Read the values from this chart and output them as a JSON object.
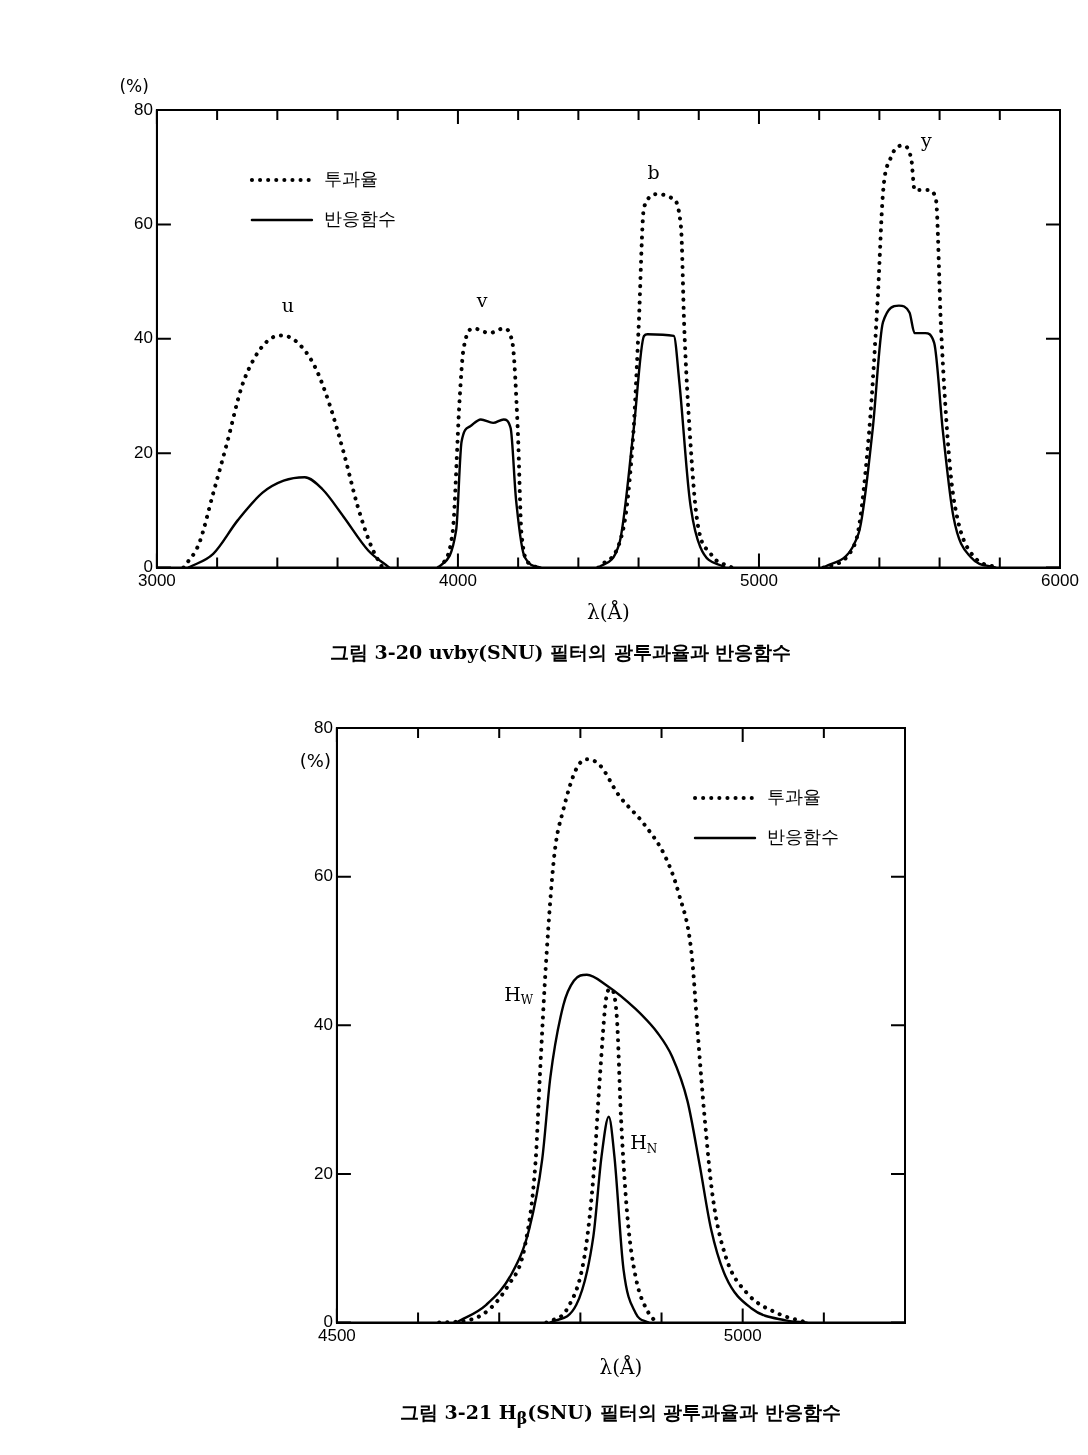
{
  "chart_data": [
    {
      "type": "line",
      "title": "그림 3-20  uvby(SNU) 필터의 광투과율과 반응함수",
      "xlabel": "λ(Å)",
      "ylabel": "(%)",
      "xlim": [
        3000,
        6000
      ],
      "ylim": [
        0,
        80
      ],
      "xticks": [
        3000,
        {
          "value": 3200,
          "label": null
        },
        {
          "value": 3400,
          "label": null
        },
        {
          "value": 3600,
          "label": null
        },
        {
          "value": 3800,
          "label": null
        },
        4000,
        {
          "value": 4200,
          "label": null
        },
        {
          "value": 4400,
          "label": null
        },
        {
          "value": 4600,
          "label": null
        },
        {
          "value": 4800,
          "label": null
        },
        5000,
        {
          "value": 5200,
          "label": null
        },
        {
          "value": 5400,
          "label": null
        },
        {
          "value": 5600,
          "label": null
        },
        {
          "value": 5800,
          "label": null
        },
        6000
      ],
      "yticks": [
        0,
        20,
        40,
        60,
        80
      ],
      "legend": "top left",
      "marker": "none",
      "series": [
        {
          "name": "투과율",
          "color": "#000000",
          "line_style": "dotted",
          "x": [
            3088,
            3140,
            3187,
            3234,
            3281,
            3327,
            3374,
            3415,
            3468,
            3526,
            3573,
            3620,
            3667,
            3713,
            3749
          ],
          "values": [
            0,
            4.2,
            13,
            22,
            31.5,
            36.9,
            39.9,
            40.6,
            39.3,
            35,
            28.6,
            20.2,
            10.7,
            3.6,
            0
          ]
        },
        {
          "name": "반응함수",
          "color": "#000000",
          "line_style": "solid",
          "x": [
            3105,
            3187,
            3269,
            3351,
            3421,
            3491,
            3550,
            3620,
            3702,
            3772
          ],
          "values": [
            0,
            2.4,
            8.3,
            13.1,
            15.2,
            15.8,
            13.7,
            8.9,
            3,
            0
          ]
        },
        {
          "color": "#000000",
          "line_style": "dotted",
          "x": [
            3936,
            3982,
            4006,
            4018,
            4053,
            4105,
            4152,
            4181,
            4199,
            4211,
            4240,
            4275
          ],
          "values": [
            0,
            6,
            29.8,
            38,
            41.8,
            41,
            41.8,
            39.3,
            23.8,
            6,
            0.6,
            0
          ]
        },
        {
          "color": "#000000",
          "line_style": "solid",
          "x": [
            3936,
            3994,
            4012,
            4041,
            4076,
            4117,
            4152,
            4175,
            4193,
            4222,
            4275
          ],
          "values": [
            0,
            6.5,
            22,
            24.7,
            25.9,
            25.3,
            25.9,
            24.4,
            11.9,
            1.8,
            0
          ]
        },
        {
          "color": "#000000",
          "line_style": "dotted",
          "x": [
            4466,
            4548,
            4583,
            4600,
            4618,
            4665,
            4711,
            4741,
            4752,
            4770,
            4793,
            4840,
            4910
          ],
          "values": [
            0,
            6.5,
            23.8,
            41.7,
            63,
            65.3,
            64.6,
            59.5,
            41.7,
            23.8,
            8.9,
            2.4,
            0
          ]
        },
        {
          "color": "#000000",
          "line_style": "solid",
          "x": [
            4466,
            4536,
            4583,
            4618,
            4630,
            4717,
            4735,
            4770,
            4805,
            4887
          ],
          "values": [
            0,
            4.2,
            23.8,
            40.5,
            40.8,
            40.5,
            32.7,
            11.9,
            3.6,
            0
          ]
        },
        {
          "color": "#000000",
          "line_style": "dotted",
          "x": [
            5214,
            5319,
            5366,
            5395,
            5412,
            5436,
            5477,
            5506,
            5517,
            5564,
            5588,
            5605,
            5634,
            5658,
            5716,
            5798
          ],
          "values": [
            0,
            4.2,
            23.8,
            47.6,
            65.5,
            71.4,
            73.8,
            71.4,
            66,
            66,
            64.3,
            41.7,
            17.9,
            8.9,
            1.8,
            0
          ]
        },
        {
          "color": "#000000",
          "line_style": "solid",
          "x": [
            5214,
            5331,
            5377,
            5412,
            5465,
            5500,
            5517,
            5552,
            5582,
            5611,
            5646,
            5704,
            5786
          ],
          "values": [
            0,
            6,
            23.8,
            42.9,
            45.8,
            44.6,
            41,
            41,
            39.3,
            23.8,
            8.9,
            1.8,
            0
          ]
        }
      ],
      "annotations": [
        "u",
        "v",
        "b",
        "y"
      ]
    },
    {
      "type": "line",
      "title": "그림 3-21  H$_{β}$(SNU) 필터의 광투과율과 반응함수",
      "xlabel": "λ(Å)",
      "ylabel": "(%)",
      "xlim": [
        4500,
        5200
      ],
      "ylim": [
        0,
        80
      ],
      "xticks": [
        4500,
        {
          "value": 4600,
          "label": null
        },
        {
          "value": 4700,
          "label": null
        },
        {
          "value": 4800,
          "label": null
        },
        {
          "value": 4900,
          "label": null
        },
        5000,
        {
          "value": 5100,
          "label": null
        }
      ],
      "yticks": [
        0,
        20,
        40,
        60,
        80
      ],
      "legend": "top right",
      "marker": "none",
      "series": [
        {
          "name": "투과율",
          "color": "#000000",
          "line_style": "dotted",
          "x": [
            4626,
            4668,
            4711,
            4732,
            4745,
            4750,
            4758,
            4768,
            4779,
            4795,
            4808,
            4824,
            4847,
            4879,
            4905,
            4921,
            4937,
            4945,
            4953,
            4963,
            4979,
            5005,
            5042,
            5079
          ],
          "values": [
            0,
            0.5,
            5,
            10.5,
            22,
            33,
            49,
            63,
            69,
            74.5,
            75.8,
            75,
            71,
            67,
            62.6,
            57.8,
            49.7,
            38.4,
            27.7,
            17,
            8.9,
            4,
            1.3,
            0
          ]
        },
        {
          "name": "반응함수",
          "color": "#000000",
          "line_style": "solid",
          "x": [
            4647,
            4684,
            4716,
            4737,
            4753,
            4763,
            4779,
            4792,
            4808,
            4832,
            4868,
            4895,
            4913,
            4932,
            4947,
            4961,
            4979,
            5011,
            5053,
            5079
          ],
          "values": [
            0,
            2.4,
            6.7,
            12.6,
            22,
            33,
            42.7,
            46,
            46.8,
            45.4,
            42.2,
            39,
            35.8,
            29.8,
            21.2,
            12.6,
            6.2,
            1.9,
            0.3,
            0
          ]
        },
        {
          "color": "#000000",
          "line_style": "dotted",
          "x": [
            4758,
            4784,
            4805,
            4816,
            4824,
            4832,
            4837,
            4845,
            4850,
            4858,
            4868,
            4884,
            4895
          ],
          "values": [
            0,
            1.9,
            8.9,
            19.6,
            33,
            43.8,
            44.9,
            41,
            27.7,
            14.2,
            6.2,
            1.3,
            0
          ]
        },
        {
          "color": "#000000",
          "line_style": "solid",
          "x": [
            4763,
            4795,
            4816,
            4826,
            4835,
            4842,
            4853,
            4868,
            4884
          ],
          "values": [
            0,
            2.4,
            11.6,
            22.3,
            27.7,
            22.3,
            7.3,
            1.3,
            0
          ]
        }
      ],
      "annotations": [
        "H$_{W}$",
        "H$_{N}$"
      ]
    }
  ]
}
